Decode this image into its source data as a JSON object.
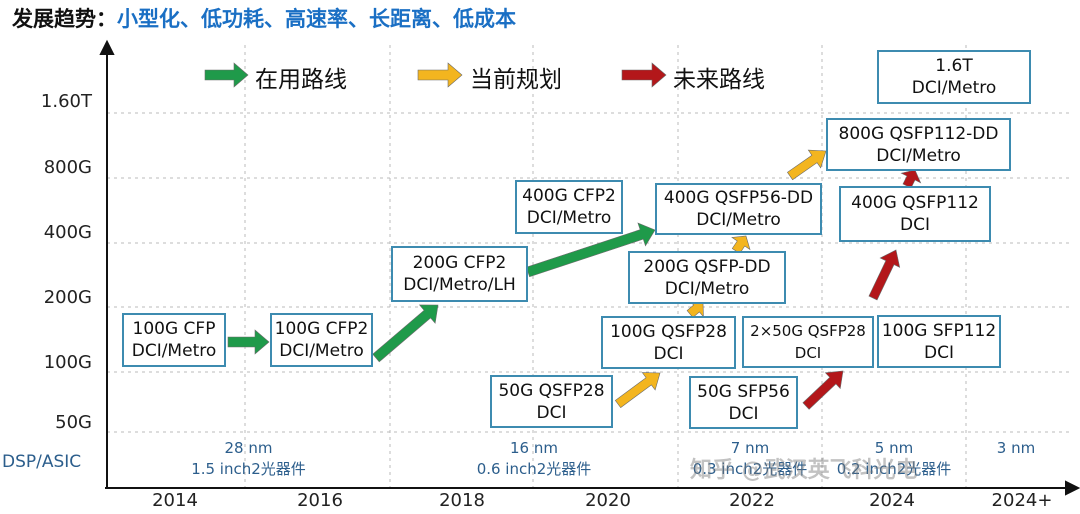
{
  "title": {
    "prefix": "发展趋势：",
    "trends": "小型化、低功耗、高速率、长距离、低成本"
  },
  "legend": [
    {
      "label": "在用路线",
      "color": "#1f9a4a"
    },
    {
      "label": "当前规划",
      "color": "#f3b51f"
    },
    {
      "label": "未来路线",
      "color": "#b3171a"
    }
  ],
  "y_axis": {
    "ticks": [
      "1.60T",
      "800G",
      "400G",
      "200G",
      "100G",
      "50G"
    ],
    "row_label": "DSP/ASIC"
  },
  "x_axis": {
    "ticks": [
      "2014",
      "2016",
      "2018",
      "2020",
      "2022",
      "2024",
      "2024+"
    ]
  },
  "process_nodes": [
    {
      "node": "28 nm",
      "size": "1.5 inch2光器件"
    },
    {
      "node": "16 nm",
      "size": "0.6 inch2光器件"
    },
    {
      "node": "7 nm",
      "size": "0.3 inch2光器件"
    },
    {
      "node": "5 nm",
      "size": "0.2 inch2光器件"
    },
    {
      "node": "3 nm",
      "size": ""
    }
  ],
  "modules": [
    {
      "name": "100G CFP",
      "use": "DCI/Metro"
    },
    {
      "name": "100G CFP2",
      "use": "DCI/Metro"
    },
    {
      "name": "200G CFP2",
      "use": "DCI/Metro/LH"
    },
    {
      "name": "400G CFP2",
      "use": "DCI/Metro"
    },
    {
      "name": "400G QSFP56-DD",
      "use": "DCI/Metro"
    },
    {
      "name": "200G QSFP-DD",
      "use": "DCI/Metro"
    },
    {
      "name": "100G QSFP28",
      "use": "DCI"
    },
    {
      "name": "50G QSFP28",
      "use": "DCI"
    },
    {
      "name": "2×50G QSFP28",
      "use": "DCI"
    },
    {
      "name": "100G SFP112",
      "use": "DCI"
    },
    {
      "name": "50G SFP56",
      "use": "DCI"
    },
    {
      "name": "400G QSFP112",
      "use": "DCI"
    },
    {
      "name": "800G QSFP112-DD",
      "use": "DCI/Metro"
    },
    {
      "name": "1.6T",
      "use": "DCI/Metro"
    }
  ],
  "watermark": "知乎 @武汉英飞科光电"
}
